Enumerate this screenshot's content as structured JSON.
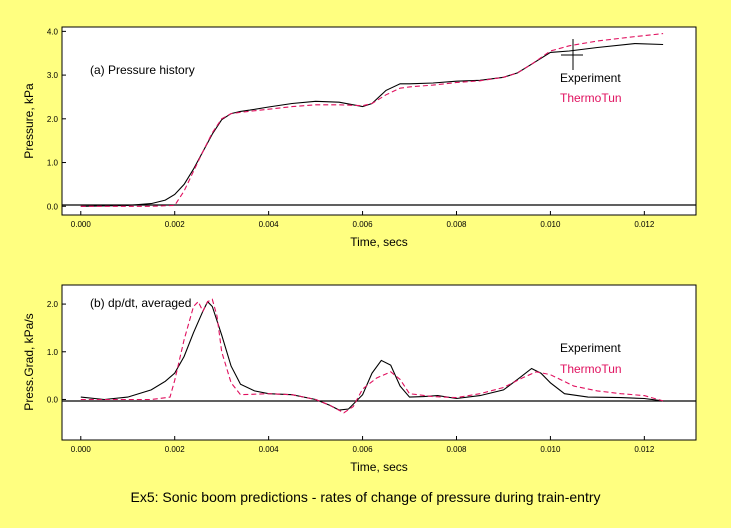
{
  "caption": "Ex5: Sonic boom predictions - rates of change of pressure during train-entry",
  "colors": {
    "background": "#ffff80",
    "plot_bg": "#ffffff",
    "experiment": "#000000",
    "thermotun": "#e0115f"
  },
  "chart_data": [
    {
      "type": "line",
      "annotation": "(a) Pressure history",
      "xlabel": "Time, secs",
      "ylabel": "Pressure, kPa",
      "xlim": [
        -0.0004,
        0.0131
      ],
      "ylim": [
        -0.2,
        4.1
      ],
      "xticks": [
        0.0,
        0.002,
        0.004,
        0.006,
        0.008,
        0.01,
        0.012
      ],
      "xtick_labels": [
        "0.000",
        "0.002",
        "0.004",
        "0.006",
        "0.008",
        "0.010",
        "0.012"
      ],
      "yticks": [
        0.0,
        1.0,
        2.0,
        3.0,
        4.0
      ],
      "ytick_labels": [
        "0.0",
        "1.0",
        "2.0",
        "3.0",
        "4.0"
      ],
      "zero_line": true,
      "legend_position": "right",
      "series": [
        {
          "name": "Experiment",
          "style": "solid",
          "x": [
            0.0,
            0.001,
            0.0015,
            0.0018,
            0.002,
            0.0022,
            0.0024,
            0.0026,
            0.0028,
            0.003,
            0.0032,
            0.0034,
            0.0036,
            0.004,
            0.0045,
            0.005,
            0.0055,
            0.006,
            0.0062,
            0.0065,
            0.0068,
            0.007,
            0.0075,
            0.008,
            0.0085,
            0.009,
            0.0093,
            0.0096,
            0.01,
            0.0104,
            0.011,
            0.0118,
            0.0124
          ],
          "values": [
            0.0,
            0.02,
            0.06,
            0.14,
            0.27,
            0.5,
            0.85,
            1.25,
            1.65,
            1.98,
            2.12,
            2.17,
            2.2,
            2.27,
            2.35,
            2.4,
            2.38,
            2.28,
            2.35,
            2.65,
            2.8,
            2.8,
            2.82,
            2.86,
            2.88,
            2.95,
            3.05,
            3.25,
            3.52,
            3.55,
            3.63,
            3.72,
            3.7
          ]
        },
        {
          "name": "ThermoTun",
          "style": "dashed",
          "x": [
            0.0,
            0.0015,
            0.002,
            0.0022,
            0.0024,
            0.0026,
            0.0028,
            0.003,
            0.0032,
            0.0035,
            0.004,
            0.0045,
            0.005,
            0.0055,
            0.006,
            0.0062,
            0.0065,
            0.0068,
            0.007,
            0.0075,
            0.008,
            0.0085,
            0.009,
            0.0093,
            0.0096,
            0.01,
            0.0104,
            0.011,
            0.0118,
            0.0124
          ],
          "values": [
            0.0,
            0.0,
            0.02,
            0.35,
            0.8,
            1.25,
            1.68,
            2.0,
            2.12,
            2.16,
            2.22,
            2.28,
            2.32,
            2.32,
            2.3,
            2.35,
            2.55,
            2.7,
            2.73,
            2.77,
            2.83,
            2.87,
            2.95,
            3.05,
            3.25,
            3.55,
            3.67,
            3.78,
            3.88,
            3.95
          ]
        }
      ]
    },
    {
      "type": "line",
      "annotation": "(b) dp/dt, averaged",
      "xlabel": "Time, secs",
      "ylabel": "Press.Grad, kPa/s",
      "xlim": [
        -0.0004,
        0.0131
      ],
      "ylim": [
        -0.85,
        2.4
      ],
      "xticks": [
        0.0,
        0.002,
        0.004,
        0.006,
        0.008,
        0.01,
        0.012
      ],
      "xtick_labels": [
        "0.000",
        "0.002",
        "0.004",
        "0.006",
        "0.008",
        "0.010",
        "0.012"
      ],
      "yticks": [
        0.0,
        1.0,
        2.0
      ],
      "ytick_labels": [
        "0.0",
        "1.0",
        "2.0"
      ],
      "zero_line": true,
      "legend_position": "right",
      "series": [
        {
          "name": "Experiment",
          "style": "solid",
          "x": [
            0.0,
            0.0005,
            0.001,
            0.0015,
            0.0018,
            0.002,
            0.0022,
            0.0024,
            0.0026,
            0.0027,
            0.0028,
            0.003,
            0.0032,
            0.0034,
            0.0037,
            0.004,
            0.0045,
            0.005,
            0.0053,
            0.0055,
            0.0057,
            0.006,
            0.0062,
            0.0064,
            0.0066,
            0.0068,
            0.007,
            0.0073,
            0.0076,
            0.008,
            0.0085,
            0.009,
            0.0093,
            0.0096,
            0.0098,
            0.01,
            0.0103,
            0.0108,
            0.0115,
            0.012,
            0.0124
          ],
          "values": [
            0.05,
            0.0,
            0.05,
            0.2,
            0.38,
            0.55,
            0.9,
            1.4,
            1.85,
            2.05,
            1.95,
            1.35,
            0.7,
            0.32,
            0.18,
            0.12,
            0.1,
            0.0,
            -0.12,
            -0.22,
            -0.2,
            0.1,
            0.55,
            0.82,
            0.72,
            0.28,
            0.05,
            0.06,
            0.08,
            0.02,
            0.08,
            0.2,
            0.42,
            0.65,
            0.55,
            0.35,
            0.12,
            0.05,
            0.04,
            0.02,
            -0.03
          ]
        },
        {
          "name": "ThermoTun",
          "style": "dashed",
          "x": [
            0.0,
            0.0015,
            0.0019,
            0.002,
            0.0022,
            0.0024,
            0.0025,
            0.0026,
            0.0027,
            0.0028,
            0.0029,
            0.003,
            0.0032,
            0.0034,
            0.004,
            0.0045,
            0.005,
            0.0053,
            0.0056,
            0.0058,
            0.006,
            0.0063,
            0.0066,
            0.0068,
            0.007,
            0.0075,
            0.008,
            0.0085,
            0.009,
            0.0094,
            0.0097,
            0.01,
            0.0105,
            0.011,
            0.0115,
            0.012,
            0.0124
          ],
          "values": [
            0.0,
            0.0,
            0.05,
            0.4,
            1.25,
            1.95,
            2.05,
            1.85,
            2.05,
            2.1,
            1.75,
            1.0,
            0.35,
            0.1,
            0.12,
            0.1,
            0.0,
            -0.12,
            -0.28,
            -0.15,
            0.22,
            0.45,
            0.58,
            0.42,
            0.12,
            0.06,
            0.04,
            0.12,
            0.25,
            0.45,
            0.58,
            0.52,
            0.28,
            0.18,
            0.12,
            0.08,
            -0.03
          ]
        }
      ]
    }
  ]
}
